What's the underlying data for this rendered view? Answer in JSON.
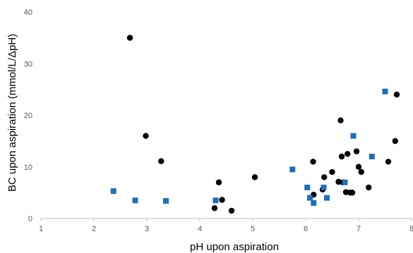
{
  "chart_data": {
    "type": "scatter",
    "title": "",
    "xlabel": "pH upon aspiration",
    "ylabel": "BC upon aspiration (mmol/L/ΔpH)",
    "xlim": [
      1,
      8
    ],
    "ylim": [
      0,
      40
    ],
    "x_ticks": [
      "1",
      "2",
      "3",
      "4",
      "5",
      "6",
      "7",
      "8"
    ],
    "y_ticks": [
      "0",
      "10",
      "20",
      "30",
      "40"
    ],
    "grid": false,
    "legend": "none",
    "series": [
      {
        "marker": "circle",
        "color": "#000000",
        "points": [
          [
            2.68,
            35.0
          ],
          [
            2.98,
            16.0
          ],
          [
            3.27,
            11.1
          ],
          [
            4.28,
            2.0
          ],
          [
            4.36,
            7.0
          ],
          [
            4.42,
            3.6
          ],
          [
            4.6,
            1.5
          ],
          [
            5.04,
            8.0
          ],
          [
            6.14,
            11.0
          ],
          [
            6.15,
            4.6
          ],
          [
            6.32,
            5.6
          ],
          [
            6.35,
            8.0
          ],
          [
            6.5,
            9.0
          ],
          [
            6.62,
            7.1
          ],
          [
            6.66,
            19.0
          ],
          [
            6.68,
            12.0
          ],
          [
            6.7,
            7.0
          ],
          [
            6.76,
            5.1
          ],
          [
            6.79,
            12.5
          ],
          [
            6.84,
            5.0
          ],
          [
            6.88,
            5.0
          ],
          [
            6.96,
            13.0
          ],
          [
            7.0,
            10.0
          ],
          [
            7.05,
            9.0
          ],
          [
            7.19,
            6.0
          ],
          [
            7.56,
            11.0
          ],
          [
            7.69,
            15.0
          ],
          [
            7.72,
            24.0
          ]
        ]
      },
      {
        "marker": "square",
        "color": "#1f6fb9",
        "points": [
          [
            2.37,
            5.3
          ],
          [
            2.78,
            3.5
          ],
          [
            3.36,
            3.4
          ],
          [
            4.3,
            3.5
          ],
          [
            5.75,
            9.5
          ],
          [
            6.03,
            6.0
          ],
          [
            6.08,
            4.0
          ],
          [
            6.15,
            3.0
          ],
          [
            6.34,
            6.0
          ],
          [
            6.4,
            4.0
          ],
          [
            6.74,
            7.0
          ],
          [
            6.9,
            16.0
          ],
          [
            7.25,
            12.0
          ],
          [
            7.5,
            24.6
          ]
        ]
      }
    ]
  }
}
